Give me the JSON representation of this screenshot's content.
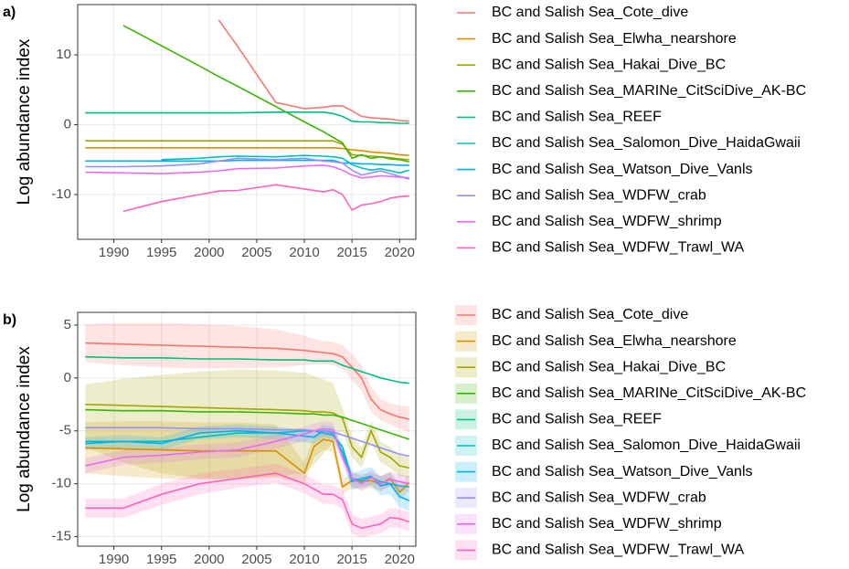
{
  "chart_data": [
    {
      "type": "line",
      "tag": "a)",
      "ylabel": "Log abundance index",
      "x": [
        1987,
        1991,
        1995,
        1999,
        2001,
        2003,
        2007,
        2010,
        2012,
        2013,
        2014,
        2015,
        2016,
        2017,
        2018,
        2019,
        2020,
        2021
      ],
      "xlim": [
        1986.2,
        2021.7
      ],
      "xticks": [
        1990,
        1995,
        2000,
        2005,
        2010,
        2015,
        2020
      ],
      "ylim": [
        -16.4,
        17.2
      ],
      "yticks": [
        -10,
        0,
        10
      ],
      "grid": true,
      "series": [
        {
          "name": "BC and Salish Sea_Cote_dive",
          "color": "#F8766D",
          "values": [
            null,
            null,
            null,
            null,
            15,
            11.2,
            3.2,
            2.3,
            2.5,
            2.7,
            2.7,
            2.0,
            1.2,
            1.0,
            0.9,
            0.8,
            0.6,
            0.5
          ]
        },
        {
          "name": "BC and Salish Sea_Elwha_nearshore",
          "color": "#D89000",
          "values": [
            -3.3,
            -3.3,
            -3.3,
            -3.3,
            -3.3,
            -3.3,
            -3.3,
            -3.3,
            -3.3,
            -3.3,
            -3.4,
            -3.6,
            -3.7,
            -3.9,
            -4.0,
            -4.1,
            -4.3,
            -4.4
          ]
        },
        {
          "name": "BC and Salish Sea_Hakai_Dive_BC",
          "color": "#A3A500",
          "values": [
            -2.3,
            -2.3,
            -2.3,
            -2.3,
            -2.3,
            -2.3,
            -2.3,
            -2.3,
            -2.3,
            -2.3,
            -2.8,
            -4.3,
            -4.4,
            -4.5,
            -4.6,
            -4.7,
            -4.9,
            -5.0
          ]
        },
        {
          "name": "BC and Salish Sea_MARINe_CitSciDive_AK-BC",
          "color": "#39B600",
          "values": [
            null,
            14.2,
            11.3,
            8.4,
            6.9,
            5.5,
            2.6,
            0.4,
            -1.0,
            -1.8,
            -2.6,
            -4.8,
            -4.3,
            -4.8,
            -4.6,
            -4.9,
            -5.0,
            -5.3
          ]
        },
        {
          "name": "BC and Salish Sea_REEF",
          "color": "#00BF7D",
          "values": [
            1.7,
            1.7,
            1.7,
            1.7,
            1.7,
            1.7,
            1.8,
            1.8,
            1.8,
            1.6,
            1.2,
            0.5,
            0.4,
            0.4,
            0.3,
            0.3,
            0.2,
            0.2
          ]
        },
        {
          "name": "BC and Salish Sea_Salomon_Dive_HaidaGwaii",
          "color": "#00BFC4",
          "values": [
            null,
            null,
            -5.0,
            -4.8,
            -4.6,
            -4.5,
            -4.6,
            -4.4,
            -4.5,
            -4.6,
            -4.8,
            -5.7,
            -6.2,
            -6.5,
            -6.3,
            -6.6,
            -6.9,
            -6.5
          ]
        },
        {
          "name": "BC and Salish Sea_Watson_Dive_Vanls",
          "color": "#00B0F6",
          "values": [
            -5.2,
            -5.2,
            -5.2,
            -5.2,
            -5.2,
            -5.1,
            -5.1,
            -5.1,
            -5.1,
            -5.1,
            -5.5,
            -5.5,
            -5.6,
            -5.6,
            -5.7,
            -5.7,
            -5.8,
            -5.8
          ]
        },
        {
          "name": "BC and Salish Sea_WDFW_crab",
          "color": "#9590FF",
          "values": [
            -6.0,
            -6.0,
            -5.9,
            -5.6,
            -5.2,
            -4.8,
            -5.0,
            -4.8,
            -5.2,
            -5.3,
            -5.5,
            -6.5,
            -7.2,
            -6.9,
            -6.6,
            -7.0,
            -7.4,
            -7.8
          ]
        },
        {
          "name": "BC and Salish Sea_WDFW_shrimp",
          "color": "#E76BF3",
          "values": [
            -6.8,
            -6.9,
            -7.0,
            -6.8,
            -6.6,
            -6.3,
            -6.2,
            -5.9,
            -5.8,
            -6.0,
            -6.5,
            -7.2,
            -7.6,
            -7.5,
            -7.3,
            -7.4,
            -7.5,
            -7.6
          ]
        },
        {
          "name": "BC and Salish Sea_WDFW_Trawl_WA",
          "color": "#FF62BC",
          "values": [
            null,
            -12.4,
            -11.0,
            -10.0,
            -9.5,
            -9.4,
            -8.6,
            -9.2,
            -9.6,
            -9.3,
            -10.0,
            -12.2,
            -11.5,
            -11.3,
            -11.0,
            -10.5,
            -10.3,
            -10.2
          ]
        }
      ]
    },
    {
      "type": "line",
      "tag": "b)",
      "ylabel": "Log abundance index",
      "x": [
        1987,
        1991,
        1995,
        1999,
        2003,
        2007,
        2010,
        2011,
        2012,
        2013,
        2014,
        2015,
        2016,
        2017,
        2018,
        2019,
        2020,
        2021
      ],
      "xlim": [
        1986.2,
        2021.7
      ],
      "xticks": [
        1990,
        1995,
        2000,
        2005,
        2010,
        2015,
        2020
      ],
      "ylim": [
        -15.9,
        6.2
      ],
      "yticks": [
        5,
        0,
        -5,
        -10,
        -15
      ],
      "grid": true,
      "series": [
        {
          "name": "BC and Salish Sea_Cote_dive",
          "color": "#F8766D",
          "values": [
            3.3,
            3.2,
            3.1,
            3.0,
            2.9,
            2.8,
            2.6,
            2.5,
            2.4,
            2.3,
            2.0,
            1.0,
            0,
            -2,
            -3,
            -3.4,
            -3.7,
            -3.9
          ],
          "lower": [
            1.5,
            1.2,
            1.0,
            0.9,
            0.9,
            1.0,
            1.2,
            1.3,
            1.3,
            1.2,
            0.9,
            -0.2,
            -1.2,
            -3.2,
            -4.0,
            -4.4,
            -4.8,
            -5.1
          ],
          "upper": [
            5.1,
            5.2,
            5.2,
            5.1,
            4.9,
            4.6,
            4.0,
            3.7,
            3.5,
            3.4,
            3.1,
            2.2,
            1.2,
            -0.8,
            -2.0,
            -2.4,
            -2.6,
            -2.7
          ]
        },
        {
          "name": "BC and Salish Sea_Elwha_nearshore",
          "color": "#D89000",
          "values": [
            -6.6,
            -6.7,
            -6.8,
            -6.9,
            -6.9,
            -6.9,
            -9.0,
            -6.5,
            -5.8,
            -6.0,
            -10.3,
            -9.7,
            -9.8,
            -9.7,
            -10.0,
            -9.5,
            -10.8,
            -9.9
          ],
          "lower": [
            -9.0,
            -9.3,
            -9.5,
            -9.6,
            -9.6,
            -9.4,
            -10.0,
            -7.5,
            -6.8,
            -7.0,
            -11.0,
            -10.4,
            -10.5,
            -10.4,
            -10.7,
            -10.2,
            -11.5,
            -10.7
          ],
          "upper": [
            -4.2,
            -4.1,
            -4.1,
            -4.2,
            -4.2,
            -4.4,
            -8.0,
            -5.5,
            -4.8,
            -5.0,
            -9.6,
            -9.0,
            -9.1,
            -9.0,
            -9.3,
            -8.8,
            -10.1,
            -9.1
          ]
        },
        {
          "name": "BC and Salish Sea_Hakai_Dive_BC",
          "color": "#A3A500",
          "values": [
            -2.5,
            -2.6,
            -2.7,
            -2.8,
            -2.9,
            -3.0,
            -3.1,
            -3.2,
            -3.2,
            -3.3,
            -3.8,
            -6.5,
            -7.5,
            -5.0,
            -7.0,
            -7.5,
            -8.3,
            -8.5
          ],
          "lower": [
            -6.5,
            -8.0,
            -9.0,
            -9.5,
            -9.5,
            -9.3,
            -9.0,
            -8.2,
            -7.2,
            -6.0,
            -5.0,
            -7.5,
            -8.5,
            -6.0,
            -8.0,
            -8.5,
            -9.3,
            -9.5
          ],
          "upper": [
            -0.6,
            -0.1,
            0.3,
            0.6,
            0.8,
            0.7,
            0.5,
            0.2,
            -0.1,
            -0.5,
            -2.8,
            -5.5,
            -6.5,
            -4.0,
            -6.0,
            -6.5,
            -7.3,
            -7.5
          ]
        },
        {
          "name": "BC and Salish Sea_MARINe_CitSciDive_AK-BC",
          "color": "#39B600",
          "values": [
            -3.0,
            -3.1,
            -3.1,
            -3.2,
            -3.2,
            -3.3,
            -3.4,
            -3.4,
            -3.5,
            -3.5,
            -3.7,
            -4.0,
            -4.3,
            -4.6,
            -4.9,
            -5.2,
            -5.5,
            -5.8
          ]
        },
        {
          "name": "BC and Salish Sea_REEF",
          "color": "#00BF7D",
          "values": [
            2.0,
            1.9,
            1.9,
            1.8,
            1.8,
            1.7,
            1.7,
            1.6,
            1.6,
            1.6,
            1.2,
            0.9,
            0.6,
            0.3,
            0,
            -0.2,
            -0.4,
            -0.5
          ]
        },
        {
          "name": "BC and Salish Sea_Salomon_Dive_HaidaGwaii",
          "color": "#00BFC4",
          "values": [
            -6.0,
            -6.0,
            -6.0,
            -5.6,
            -5.2,
            -5.2,
            -5.0,
            -5.0,
            -5.2,
            -5.4,
            -6.5,
            -9.5,
            -9.7,
            -9.4,
            -9.8,
            -10.0,
            -10.2,
            -10.3
          ]
        },
        {
          "name": "BC and Salish Sea_Watson_Dive_Vanls",
          "color": "#00B0F6",
          "values": [
            -6.2,
            -6.0,
            -6.2,
            -5.2,
            -5.0,
            -5.2,
            -5.5,
            -5.6,
            -5.0,
            -5.2,
            -7.0,
            -9.8,
            -9.5,
            -9.3,
            -10.2,
            -10.0,
            -11.2,
            -11.6
          ],
          "lower": [
            -6.8,
            -6.6,
            -6.8,
            -5.8,
            -5.6,
            -5.8,
            -6.1,
            -6.2,
            -5.6,
            -5.8,
            -7.7,
            -10.6,
            -10.3,
            -10.2,
            -11.1,
            -11.0,
            -12.2,
            -12.6
          ],
          "upper": [
            -5.6,
            -5.4,
            -5.6,
            -4.6,
            -4.4,
            -4.6,
            -4.9,
            -5.0,
            -4.4,
            -4.6,
            -6.3,
            -9.0,
            -8.7,
            -8.4,
            -9.3,
            -9.0,
            -10.2,
            -10.6
          ]
        },
        {
          "name": "BC and Salish Sea_WDFW_crab",
          "color": "#9590FF",
          "values": [
            -4.7,
            -4.7,
            -4.7,
            -4.8,
            -4.8,
            -4.9,
            -4.9,
            -5.0,
            -5.0,
            -5.1,
            -5.4,
            -5.7,
            -6.0,
            -6.3,
            -6.6,
            -6.9,
            -7.2,
            -7.4
          ]
        },
        {
          "name": "BC and Salish Sea_WDFW_shrimp",
          "color": "#E76BF3",
          "values": [
            -8.3,
            -7.5,
            -7.3,
            -7.0,
            -6.8,
            -6.0,
            -5.3,
            -5.0,
            -4.8,
            -4.9,
            -7.5,
            -9.5,
            -10.0,
            -9.4,
            -10.0,
            -9.6,
            -9.8,
            -10.0
          ],
          "lower": [
            -9.0,
            -8.2,
            -8.0,
            -7.7,
            -7.5,
            -6.7,
            -6.0,
            -5.7,
            -5.5,
            -5.6,
            -8.2,
            -10.2,
            -10.7,
            -10.1,
            -10.7,
            -10.3,
            -10.5,
            -10.7
          ],
          "upper": [
            -7.6,
            -6.8,
            -6.6,
            -6.3,
            -6.1,
            -5.3,
            -4.6,
            -4.3,
            -4.1,
            -4.2,
            -6.8,
            -8.8,
            -9.3,
            -8.7,
            -9.3,
            -8.9,
            -9.1,
            -9.3
          ]
        },
        {
          "name": "BC and Salish Sea_WDFW_Trawl_WA",
          "color": "#FF62BC",
          "values": [
            -12.3,
            -12.3,
            -11.0,
            -10.0,
            -9.5,
            -9.0,
            -10.0,
            -10.5,
            -11.0,
            -11.0,
            -11.5,
            -13.8,
            -14.2,
            -14.0,
            -13.8,
            -13.2,
            -13.3,
            -13.6
          ],
          "lower": [
            -13.2,
            -13.2,
            -12.0,
            -11.0,
            -10.4,
            -9.9,
            -10.9,
            -11.4,
            -11.9,
            -11.9,
            -12.4,
            -14.7,
            -15.1,
            -14.9,
            -14.7,
            -14.1,
            -14.2,
            -14.5
          ],
          "upper": [
            -11.4,
            -11.4,
            -10.0,
            -9.0,
            -8.6,
            -8.1,
            -9.1,
            -9.6,
            -10.1,
            -10.1,
            -10.6,
            -12.9,
            -13.3,
            -13.1,
            -12.9,
            -12.3,
            -12.4,
            -12.7
          ]
        }
      ]
    }
  ]
}
